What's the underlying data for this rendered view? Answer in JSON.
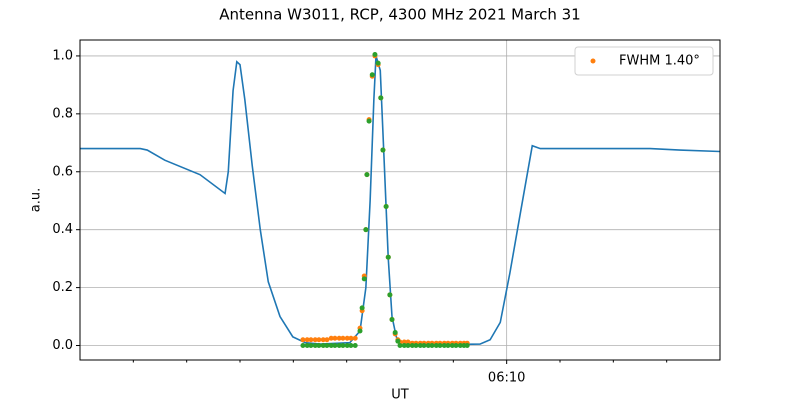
{
  "chart_data": {
    "type": "line",
    "title": "Antenna W3011, RCP, 4300 MHz 2021 March 31",
    "xlabel": "UT",
    "ylabel": "a.u.",
    "xlim": [
      2,
      14
    ],
    "ylim": [
      -0.05,
      1.055
    ],
    "xticks": [
      {
        "value": 10,
        "label": "06:10"
      }
    ],
    "xminorticks": [
      3,
      4,
      5,
      6,
      7,
      8,
      9,
      11,
      12,
      13
    ],
    "yticks": [
      {
        "value": 0,
        "label": "0.0"
      },
      0.2,
      0.4,
      0.6,
      0.8,
      {
        "value": 1,
        "label": "1.0"
      }
    ],
    "grid": true,
    "legend": "upper right",
    "series": [
      {
        "color": "#1f77b4",
        "kind": "line",
        "x": [
          2.0,
          3.13,
          3.26,
          3.59,
          4.25,
          4.72,
          4.78,
          4.87,
          4.94,
          5.0,
          5.09,
          5.23,
          5.38,
          5.53,
          5.75,
          5.99,
          6.22,
          6.5,
          7.06,
          7.25,
          7.36,
          7.44,
          7.51,
          7.55,
          7.63,
          7.7,
          7.78,
          7.85,
          7.93,
          8.0,
          8.75,
          9.5,
          9.69,
          9.88,
          10.06,
          10.25,
          10.48,
          10.63,
          11.75,
          12.69,
          13.25,
          14.0
        ],
        "values": [
          0.68,
          0.68,
          0.675,
          0.64,
          0.59,
          0.525,
          0.6,
          0.88,
          0.98,
          0.97,
          0.85,
          0.62,
          0.4,
          0.22,
          0.1,
          0.03,
          0.01,
          0.005,
          0.01,
          0.05,
          0.2,
          0.5,
          0.85,
          1.0,
          0.95,
          0.65,
          0.3,
          0.1,
          0.03,
          0.01,
          0.003,
          0.005,
          0.02,
          0.08,
          0.25,
          0.45,
          0.69,
          0.68,
          0.68,
          0.68,
          0.675,
          0.67
        ]
      },
      {
        "name": "FWHM 1.40°",
        "color": "#ff7f0e",
        "kind": "scatter",
        "x": [
          6.18,
          6.26,
          6.33,
          6.41,
          6.48,
          6.56,
          6.63,
          6.71,
          6.78,
          6.86,
          6.93,
          7.01,
          7.08,
          7.16,
          7.25,
          7.29,
          7.33,
          7.36,
          7.38,
          7.42,
          7.48,
          7.53,
          7.59,
          7.64,
          7.68,
          7.74,
          7.78,
          7.81,
          7.85,
          7.91,
          7.96,
          8.0,
          8.08,
          8.15,
          8.23,
          8.3,
          8.38,
          8.45,
          8.53,
          8.6,
          8.68,
          8.75,
          8.83,
          8.9,
          8.98,
          9.05,
          9.13,
          9.2,
          9.26
        ],
        "values": [
          0.02,
          0.02,
          0.02,
          0.02,
          0.02,
          0.02,
          0.02,
          0.025,
          0.025,
          0.025,
          0.025,
          0.025,
          0.025,
          0.025,
          0.06,
          0.12,
          0.24,
          0.4,
          0.59,
          0.78,
          0.93,
          1.0,
          0.97,
          0.855,
          0.675,
          0.48,
          0.305,
          0.175,
          0.09,
          0.04,
          0.02,
          0.012,
          0.012,
          0.012,
          0.008,
          0.008,
          0.008,
          0.008,
          0.008,
          0.008,
          0.008,
          0.008,
          0.008,
          0.008,
          0.008,
          0.008,
          0.008,
          0.008,
          0.008
        ]
      },
      {
        "color": "#2ca02c",
        "kind": "scatter",
        "x": [
          6.18,
          6.26,
          6.33,
          6.41,
          6.48,
          6.56,
          6.63,
          6.71,
          6.78,
          6.86,
          6.93,
          7.01,
          7.08,
          7.16,
          7.25,
          7.29,
          7.33,
          7.36,
          7.38,
          7.42,
          7.48,
          7.53,
          7.59,
          7.64,
          7.68,
          7.74,
          7.78,
          7.81,
          7.85,
          7.91,
          7.96,
          8.0,
          8.08,
          8.15,
          8.23,
          8.3,
          8.38,
          8.45,
          8.53,
          8.6,
          8.68,
          8.75,
          8.83,
          8.9,
          8.98,
          9.05,
          9.13,
          9.2,
          9.26
        ],
        "values": [
          0,
          0,
          0,
          0,
          0,
          0,
          0,
          0,
          0,
          0,
          0,
          0,
          0,
          0,
          0.05,
          0.13,
          0.23,
          0.4,
          0.59,
          0.775,
          0.935,
          1.005,
          0.975,
          0.855,
          0.675,
          0.48,
          0.305,
          0.175,
          0.09,
          0.045,
          0.015,
          0,
          0,
          0,
          0,
          0,
          0,
          0,
          0,
          0,
          0,
          0,
          0,
          0,
          0,
          0,
          0,
          0,
          0
        ]
      }
    ]
  }
}
